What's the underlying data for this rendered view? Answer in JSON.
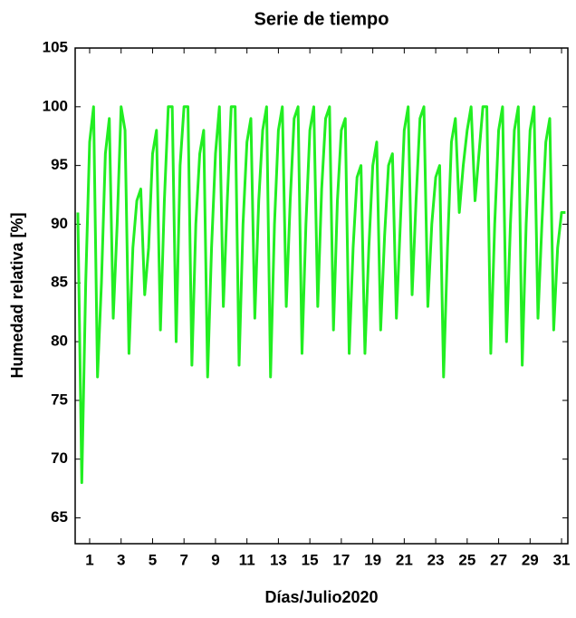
{
  "chart_data": {
    "type": "line",
    "title": "Serie de tiempo",
    "x_label": "Días/Julio2020",
    "y_label": "Humedad relativa [%]",
    "xlim": [
      0.08,
      31.4
    ],
    "xticks": [
      1,
      3,
      5,
      7,
      9,
      11,
      13,
      15,
      17,
      19,
      21,
      23,
      25,
      27,
      29,
      31
    ],
    "ylim": [
      62.8,
      105
    ],
    "yticks": [
      65,
      70,
      75,
      80,
      85,
      90,
      95,
      100,
      105
    ],
    "x": [
      0.25,
      0.5,
      0.75,
      1,
      1.25,
      1.5,
      1.75,
      2,
      2.25,
      2.5,
      2.75,
      3,
      3.25,
      3.5,
      3.75,
      4,
      4.25,
      4.5,
      4.75,
      5,
      5.25,
      5.5,
      5.75,
      6,
      6.25,
      6.5,
      6.75,
      7,
      7.25,
      7.5,
      7.75,
      8,
      8.25,
      8.5,
      8.75,
      9,
      9.25,
      9.5,
      9.75,
      10,
      10.25,
      10.5,
      10.75,
      11,
      11.25,
      11.5,
      11.75,
      12,
      12.25,
      12.5,
      12.75,
      13,
      13.25,
      13.5,
      13.75,
      14,
      14.25,
      14.5,
      14.75,
      15,
      15.25,
      15.5,
      15.75,
      16,
      16.25,
      16.5,
      16.75,
      17,
      17.25,
      17.5,
      17.75,
      18,
      18.25,
      18.5,
      18.75,
      19,
      19.25,
      19.5,
      19.75,
      20,
      20.25,
      20.5,
      20.75,
      21,
      21.25,
      21.5,
      21.75,
      22,
      22.25,
      22.5,
      22.75,
      23,
      23.25,
      23.5,
      23.75,
      24,
      24.25,
      24.5,
      24.75,
      25,
      25.25,
      25.5,
      25.75,
      26,
      26.25,
      26.5,
      26.75,
      27,
      27.25,
      27.5,
      27.75,
      28,
      28.25,
      28.5,
      28.75,
      29,
      29.25,
      29.5,
      29.75,
      30,
      30.25,
      30.5,
      30.75,
      31,
      31.25
    ],
    "series": [
      {
        "color": "#22ee22",
        "values": [
          91,
          68,
          85,
          97,
          100,
          77,
          85,
          96,
          99,
          82,
          90,
          100,
          98,
          79,
          88,
          92,
          93,
          84,
          88,
          96,
          98,
          81,
          92,
          100,
          100,
          80,
          95,
          100,
          100,
          78,
          90,
          96,
          98,
          77,
          88,
          96,
          100,
          83,
          92,
          100,
          100,
          78,
          90,
          97,
          99,
          82,
          92,
          98,
          100,
          77,
          90,
          98,
          100,
          83,
          92,
          99,
          100,
          79,
          90,
          98,
          100,
          83,
          93,
          99,
          100,
          81,
          92,
          98,
          99,
          79,
          88,
          94,
          95,
          79,
          88,
          95,
          97,
          81,
          89,
          95,
          96,
          82,
          90,
          98,
          100,
          84,
          92,
          99,
          100,
          83,
          90,
          94,
          95,
          77,
          88,
          97,
          99,
          91,
          95,
          98,
          100,
          92,
          96,
          100,
          100,
          79,
          90,
          98,
          100,
          80,
          90,
          98,
          100,
          78,
          90,
          98,
          100,
          82,
          90,
          97,
          99,
          81,
          88,
          91,
          91
        ]
      }
    ]
  }
}
